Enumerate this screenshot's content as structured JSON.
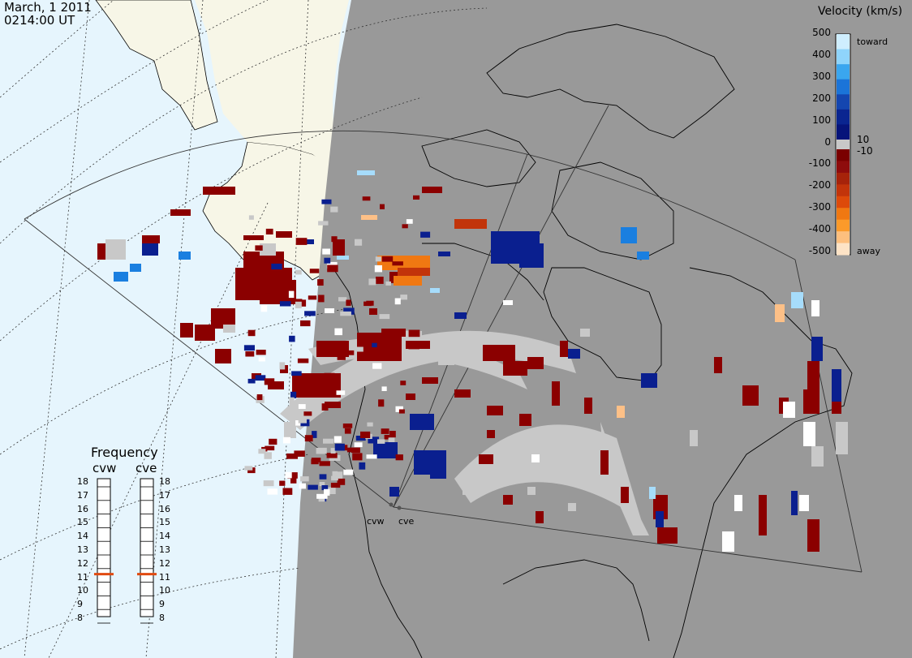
{
  "header": {
    "date": "March, 1 2011",
    "time": "0214:00 UT"
  },
  "velocity_scale": {
    "title": "Velocity (km/s)",
    "ticks": [
      "500",
      "400",
      "300",
      "200",
      "100",
      "0",
      "-100",
      "-200",
      "-300",
      "-400",
      "-500"
    ],
    "toward_label": "toward",
    "away_label": "away",
    "small_pos_label": "10",
    "small_neg_label": "-10"
  },
  "frequency_panel": {
    "title": "Frequency",
    "left_radar": "cvw",
    "right_radar": "cve",
    "ticks": [
      "18",
      "17",
      "16",
      "15",
      "14",
      "13",
      "12",
      "11",
      "10",
      "9",
      "8"
    ],
    "cvw_frequency": 11,
    "cve_frequency": 11
  },
  "radars": {
    "cvw": "cvw",
    "cve": "cve"
  },
  "colors": {
    "ocean": "#e6f5fd",
    "land_day": "#f7f6e7",
    "night_shade": "#999999",
    "ground_scatter": "#c8c8c8",
    "frequency_marker": "#e04a10"
  }
}
